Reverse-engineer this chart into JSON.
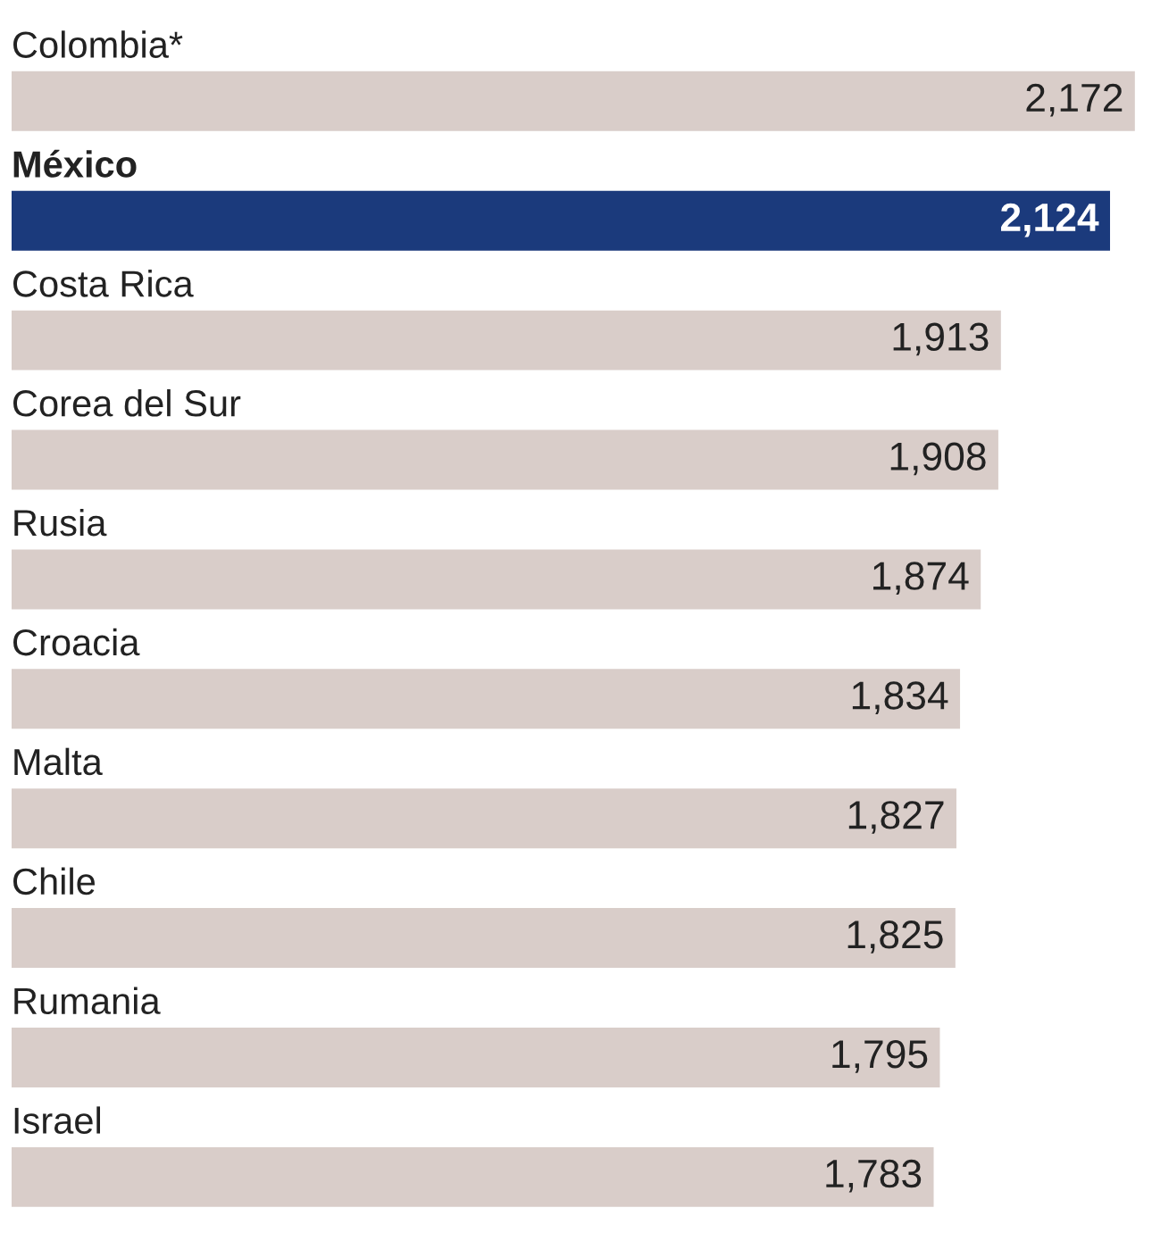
{
  "chart_data": {
    "type": "bar",
    "orientation": "horizontal",
    "categories": [
      "Colombia*",
      "México",
      "Costa Rica",
      "Corea del Sur",
      "Rusia",
      "Croacia",
      "Malta",
      "Chile",
      "Rumania",
      "Israel"
    ],
    "values": [
      2172,
      2124,
      1913,
      1908,
      1874,
      1834,
      1827,
      1825,
      1795,
      1783
    ],
    "value_labels": [
      "2,172",
      "2,124",
      "1,913",
      "1,908",
      "1,874",
      "1,834",
      "1,827",
      "1,825",
      "1,795",
      "1,783"
    ],
    "colors": [
      "#d9cdc9",
      "#1b3a7c",
      "#d9cdc9",
      "#d9cdc9",
      "#d9cdc9",
      "#d9cdc9",
      "#d9cdc9",
      "#d9cdc9",
      "#d9cdc9",
      "#d9cdc9"
    ]
  }
}
